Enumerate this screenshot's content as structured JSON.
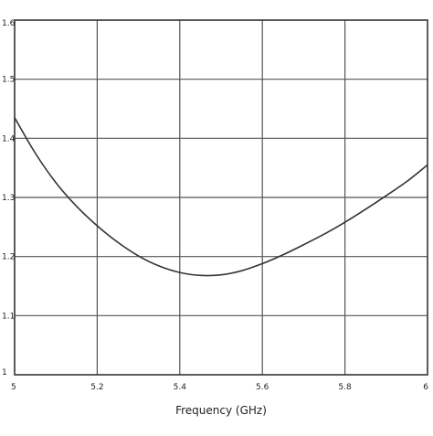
{
  "chart_data": {
    "type": "line",
    "title": "",
    "xlabel": "Frequency (GHz)",
    "ylabel": "",
    "xlim": [
      5.0,
      6.0
    ],
    "ylim": [
      1.0,
      1.6
    ],
    "x_ticks": [
      "5",
      "5.2",
      "5.4",
      "5.6",
      "5.8",
      "6"
    ],
    "y_ticks": [
      "1",
      "1.1",
      "1.2",
      "1.3",
      "1.4",
      "1.5",
      "1.6"
    ],
    "grid": true,
    "series": [
      {
        "x": [
          5.0,
          5.05,
          5.1,
          5.15,
          5.2,
          5.25,
          5.3,
          5.35,
          5.4,
          5.45,
          5.5,
          5.55,
          5.6,
          5.65,
          5.7,
          5.75,
          5.8,
          5.85,
          5.9,
          5.95,
          6.0
        ],
        "y": [
          1.435,
          1.375,
          1.325,
          1.285,
          1.252,
          1.224,
          1.201,
          1.184,
          1.173,
          1.168,
          1.169,
          1.176,
          1.188,
          1.203,
          1.22,
          1.238,
          1.258,
          1.28,
          1.303,
          1.327,
          1.355
        ]
      }
    ]
  }
}
